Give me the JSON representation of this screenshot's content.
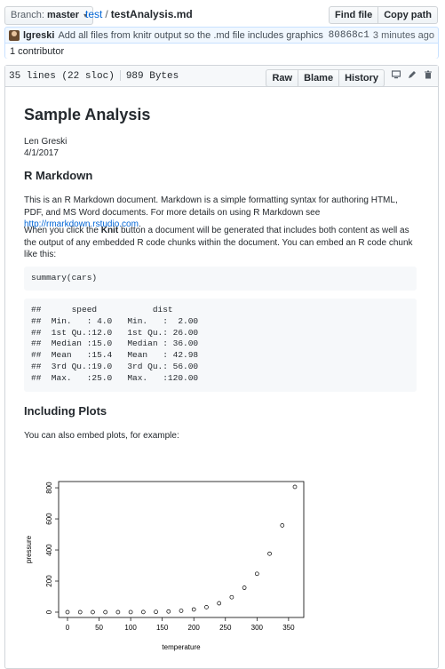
{
  "topbar": {
    "branch_prefix": "Branch:",
    "branch_name": "master",
    "repo": "test",
    "separator": "/",
    "file_name": "testAnalysis.md",
    "find_file": "Find file",
    "copy_path": "Copy path"
  },
  "commit": {
    "author": "lgreski",
    "message": "Add all files from knitr output so the .md file includes graphics whe...",
    "sha": "80868c1",
    "time": "3 minutes ago",
    "contributors": "1 contributor"
  },
  "file_header": {
    "lines": "35 lines (22 sloc)",
    "size": "989 Bytes",
    "raw": "Raw",
    "blame": "Blame",
    "history": "History",
    "icons": [
      "desktop-icon",
      "pencil-icon",
      "trash-icon"
    ]
  },
  "doc": {
    "title": "Sample Analysis",
    "author": "Len Greski",
    "date": "4/1/2017",
    "h2_markdown": "R Markdown",
    "p1_text": "This is an R Markdown document. Markdown is a simple formatting syntax for authoring HTML, PDF, and MS Word documents. For more details on using R Markdown see ",
    "p1_link": "http://rmarkdown.rstudio.com",
    "p1_end": ".",
    "p2_a": "When you click the ",
    "p2_bold": "Knit",
    "p2_b": " button a document will be generated that includes both content as well as the output of any embedded R code chunks within the document. You can embed an R code chunk like this:",
    "code1": "summary(cars)",
    "output_lines": [
      "##      speed           dist       ",
      "##  Min.   : 4.0   Min.   :  2.00  ",
      "##  1st Qu.:12.0   1st Qu.: 26.00  ",
      "##  Median :15.0   Median : 36.00  ",
      "##  Mean   :15.4   Mean   : 42.98  ",
      "##  3rd Qu.:19.0   3rd Qu.: 56.00  ",
      "##  Max.   :25.0   Max.   :120.00  "
    ],
    "h2_plots": "Including Plots",
    "p3": "You can also embed plots, for example:"
  },
  "chart_data": {
    "type": "scatter",
    "xlabel": "temperature",
    "ylabel": "pressure",
    "xticks": [
      "0",
      "50",
      "100",
      "150",
      "200",
      "250",
      "300",
      "350"
    ],
    "yticks": [
      "0",
      "200",
      "400",
      "600",
      "800"
    ],
    "xlim": [
      0,
      360
    ],
    "ylim": [
      0,
      806
    ],
    "x": [
      0,
      20,
      40,
      60,
      80,
      100,
      120,
      140,
      160,
      180,
      200,
      220,
      240,
      260,
      280,
      300,
      320,
      340,
      360
    ],
    "y": [
      0.0002,
      0.0012,
      0.006,
      0.03,
      0.09,
      0.27,
      0.75,
      1.85,
      4.2,
      8.8,
      17.3,
      32.1,
      57,
      96,
      157,
      247,
      376,
      558,
      806
    ]
  }
}
